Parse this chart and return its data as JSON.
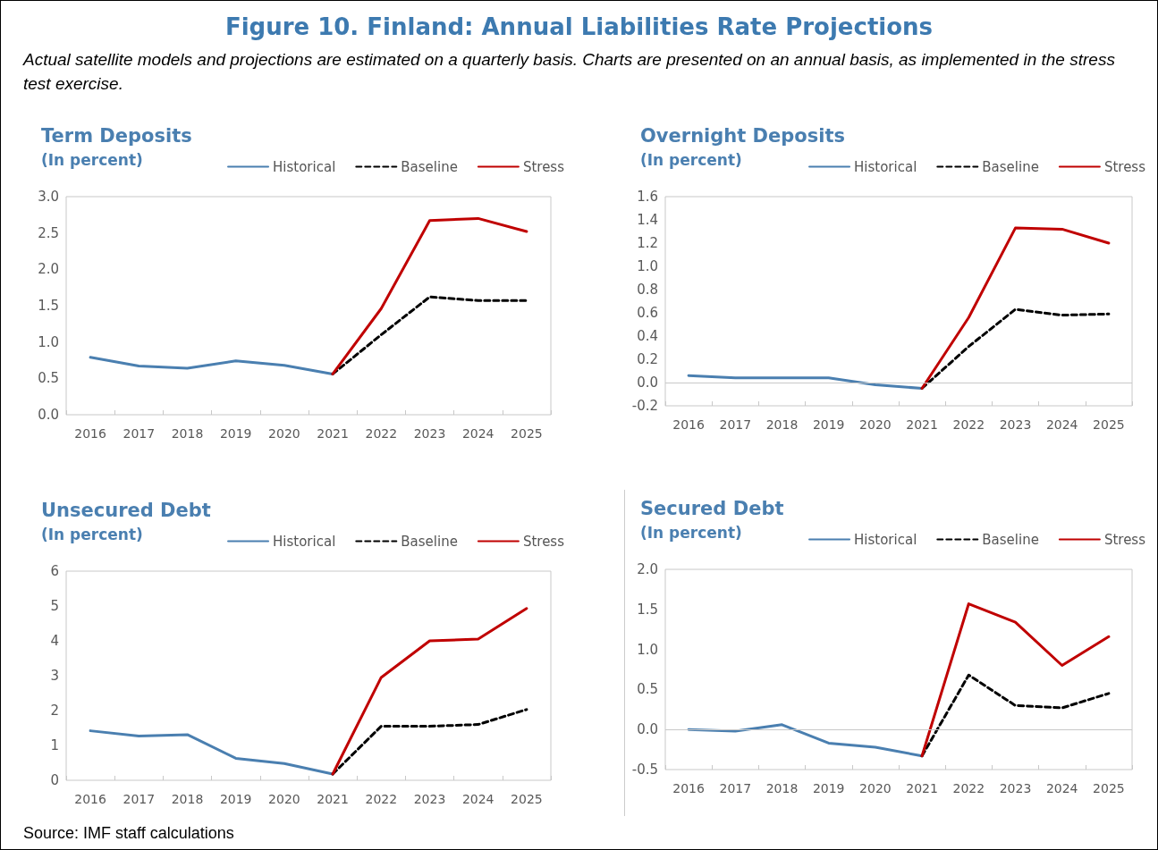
{
  "chart_data": [
    {
      "type": "line",
      "title": "Term Deposits",
      "subtitle": "(In percent)",
      "annotations": [
        "Figure 10. Finland: Annual Liabilities Rate Projections",
        "Actual satellite models and projections are estimated on a quarterly basis. Charts are presented on an annual basis, as implemented in the stress test exercise."
      ],
      "categories": [
        "2016",
        "2017",
        "2018",
        "2019",
        "2020",
        "2021",
        "2022",
        "2023",
        "2024",
        "2025"
      ],
      "series": [
        {
          "name": "Historical",
          "color": "#4a7fb0",
          "line_style": "solid",
          "values": [
            0.79,
            0.67,
            0.64,
            0.74,
            0.68,
            0.56,
            null,
            null,
            null,
            null
          ]
        },
        {
          "name": "Baseline",
          "color": "#000000",
          "line_style": "dashed",
          "values": [
            null,
            null,
            null,
            null,
            null,
            0.56,
            1.1,
            1.62,
            1.57,
            1.57
          ]
        },
        {
          "name": "Stress",
          "color": "#c00000",
          "line_style": "solid",
          "values": [
            null,
            null,
            null,
            null,
            null,
            0.56,
            1.46,
            2.67,
            2.7,
            2.52
          ]
        }
      ],
      "ylim": [
        0,
        3
      ],
      "yticks": [
        {
          "value": 0,
          "label": "0.0"
        },
        0.5,
        {
          "value": 1,
          "label": "1.0"
        },
        1.5,
        {
          "value": 2,
          "label": "2.0"
        },
        2.5,
        {
          "value": 3,
          "label": "3.0"
        }
      ],
      "grid": false,
      "legend": "top right",
      "marker": "none"
    },
    {
      "type": "line",
      "title": "Overnight Deposits",
      "subtitle": "(In percent)",
      "categories": [
        "2016",
        "2017",
        "2018",
        "2019",
        "2020",
        "2021",
        "2022",
        "2023",
        "2024",
        "2025"
      ],
      "series": [
        {
          "name": "Historical",
          "color": "#4a7fb0",
          "line_style": "solid",
          "values": [
            0.06,
            0.04,
            0.04,
            0.04,
            -0.02,
            -0.05,
            null,
            null,
            null,
            null
          ]
        },
        {
          "name": "Baseline",
          "color": "#000000",
          "line_style": "dashed",
          "values": [
            null,
            null,
            null,
            null,
            null,
            -0.05,
            0.31,
            0.63,
            0.58,
            0.59
          ]
        },
        {
          "name": "Stress",
          "color": "#c00000",
          "line_style": "solid",
          "values": [
            null,
            null,
            null,
            null,
            null,
            -0.05,
            0.56,
            1.33,
            1.32,
            1.2
          ]
        }
      ],
      "ref_lines": [
        {
          "axis": "y",
          "value": 0,
          "color": "#c8c8c8"
        }
      ],
      "ylim": [
        -0.2,
        1.6
      ],
      "yticks": [
        -0.2,
        {
          "value": 0,
          "label": "0.0"
        },
        0.2,
        0.4,
        0.6,
        0.8,
        {
          "value": 1,
          "label": "1.0"
        },
        1.2,
        1.4,
        1.6
      ],
      "grid": false,
      "legend": "top right",
      "marker": "none"
    },
    {
      "type": "line",
      "title": "Unsecured Debt",
      "subtitle": "(In percent)",
      "categories": [
        "2016",
        "2017",
        "2018",
        "2019",
        "2020",
        "2021",
        "2022",
        "2023",
        "2024",
        "2025"
      ],
      "series": [
        {
          "name": "Historical",
          "color": "#4a7fb0",
          "line_style": "solid",
          "values": [
            1.42,
            1.27,
            1.31,
            0.63,
            0.48,
            0.18,
            null,
            null,
            null,
            null
          ]
        },
        {
          "name": "Baseline",
          "color": "#000000",
          "line_style": "dashed",
          "values": [
            null,
            null,
            null,
            null,
            null,
            0.18,
            1.55,
            1.55,
            1.6,
            2.03
          ]
        },
        {
          "name": "Stress",
          "color": "#c00000",
          "line_style": "solid",
          "values": [
            null,
            null,
            null,
            null,
            null,
            0.18,
            2.95,
            4.0,
            4.05,
            4.93
          ]
        }
      ],
      "ylim": [
        0,
        6
      ],
      "yticks": [
        0,
        1,
        2,
        3,
        4,
        5,
        6
      ],
      "grid": false,
      "legend": "top right",
      "marker": "none"
    },
    {
      "type": "line",
      "title": "Secured Debt",
      "subtitle": "(In percent)",
      "annotations": [
        "Source: IMF staff calculations"
      ],
      "categories": [
        "2016",
        "2017",
        "2018",
        "2019",
        "2020",
        "2021",
        "2022",
        "2023",
        "2024",
        "2025"
      ],
      "series": [
        {
          "name": "Historical",
          "color": "#4a7fb0",
          "line_style": "solid",
          "values": [
            0.0,
            -0.02,
            0.06,
            -0.17,
            -0.22,
            -0.33,
            null,
            null,
            null,
            null
          ]
        },
        {
          "name": "Baseline",
          "color": "#000000",
          "line_style": "dashed",
          "values": [
            null,
            null,
            null,
            null,
            null,
            -0.33,
            0.68,
            0.3,
            0.27,
            0.45
          ]
        },
        {
          "name": "Stress",
          "color": "#c00000",
          "line_style": "solid",
          "values": [
            null,
            null,
            null,
            null,
            null,
            -0.33,
            1.57,
            1.34,
            0.8,
            1.16
          ]
        }
      ],
      "ref_lines": [
        {
          "axis": "y",
          "value": 0,
          "color": "#c8c8c8"
        }
      ],
      "ylim": [
        -0.5,
        2
      ],
      "yticks": [
        -0.5,
        {
          "value": 0,
          "label": "0.0"
        },
        0.5,
        {
          "value": 1,
          "label": "1.0"
        },
        1.5,
        {
          "value": 2,
          "label": "2.0"
        }
      ],
      "grid": false,
      "legend": "top right",
      "marker": "none"
    }
  ]
}
